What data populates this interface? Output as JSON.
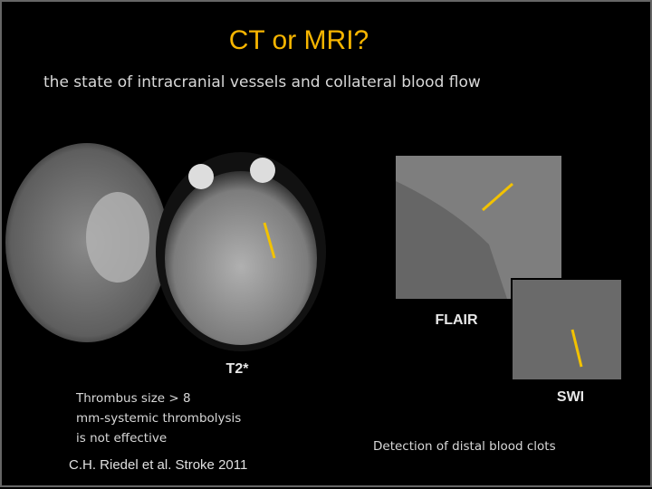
{
  "slide": {
    "title": "CT or MRI?",
    "subtitle": "the state of intracranial vessels and collateral blood flow",
    "images": [
      {
        "label": "T2*"
      },
      {
        "label": "FLAIR"
      },
      {
        "label": "SWI"
      }
    ],
    "left_note": [
      "Thrombus size > 8",
      "mm-systemic thrombolysis",
      "is not effective"
    ],
    "right_note": "Detection of distal blood clots",
    "citation": "C.H. Riedel et al. Stroke 2011"
  }
}
